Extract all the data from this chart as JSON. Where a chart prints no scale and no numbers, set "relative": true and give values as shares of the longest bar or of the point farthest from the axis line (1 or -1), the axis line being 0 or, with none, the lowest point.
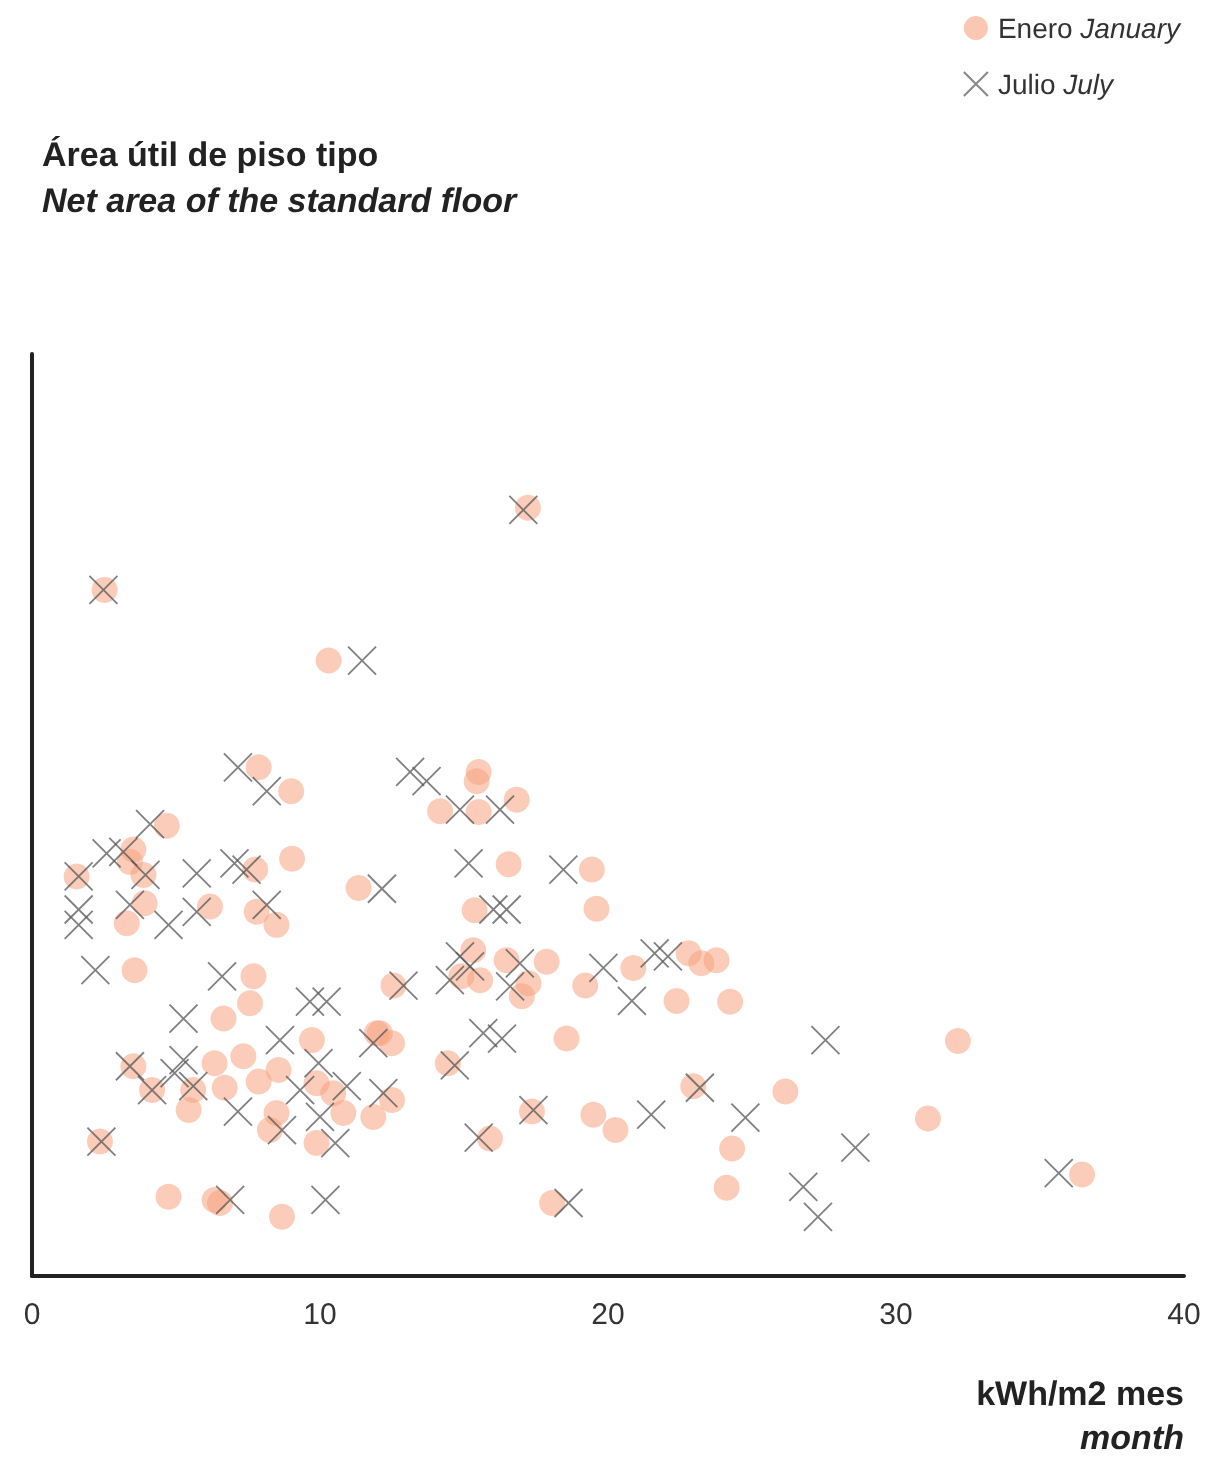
{
  "chart_data": {
    "type": "scatter",
    "title": "Área útil de piso tipo",
    "subtitle": "Net area of the standard floor",
    "xlabel": "kWh/m2 mes\nmonth",
    "relative": true,
    "xlim": [
      0,
      40
    ],
    "xticks": [
      0,
      10,
      20,
      30,
      40
    ],
    "grid": false,
    "legend": "top right",
    "series": [
      {
        "name": "Enero January",
        "color": "#f5a27f",
        "marker": "circle",
        "x": [
          2.52,
          10.3,
          7.87,
          9.0,
          4.68,
          3.52,
          1.55,
          3.4,
          7.75,
          9.03,
          3.87,
          11.34,
          3.91,
          6.18,
          3.29,
          7.8,
          8.49,
          3.56,
          7.69,
          7.57,
          6.65,
          9.72,
          11.97,
          3.52,
          6.34,
          7.34,
          8.56,
          4.17,
          5.6,
          6.69,
          7.87,
          5.44,
          9.88,
          10.46,
          10.81,
          8.49,
          8.26,
          9.88,
          11.85,
          2.36,
          4.74,
          6.34,
          6.53,
          8.68,
          17.22,
          15.51,
          15.44,
          16.83,
          14.17,
          15.51,
          16.55,
          19.44,
          15.37,
          19.6,
          15.32,
          14.91,
          15.56,
          16.48,
          17.87,
          17.24,
          17.01,
          12.55,
          19.21,
          20.88,
          22.38,
          22.8,
          12.08,
          12.5,
          18.56,
          14.44,
          12.5,
          17.36,
          15.9,
          19.49,
          20.26,
          18.06,
          22.96,
          23.24,
          23.77,
          24.24,
          32.15,
          26.16,
          31.11,
          24.31,
          24.12,
          36.46
        ],
        "values": [
          0.893,
          0.801,
          0.662,
          0.631,
          0.586,
          0.555,
          0.52,
          0.539,
          0.529,
          0.543,
          0.522,
          0.505,
          0.485,
          0.481,
          0.459,
          0.474,
          0.457,
          0.398,
          0.39,
          0.355,
          0.335,
          0.307,
          0.316,
          0.273,
          0.277,
          0.286,
          0.268,
          0.242,
          0.242,
          0.245,
          0.253,
          0.216,
          0.251,
          0.238,
          0.212,
          0.212,
          0.19,
          0.173,
          0.207,
          0.175,
          0.103,
          0.099,
          0.095,
          0.077,
          1.0,
          0.656,
          0.644,
          0.62,
          0.605,
          0.604,
          0.536,
          0.529,
          0.476,
          0.478,
          0.424,
          0.39,
          0.385,
          0.411,
          0.409,
          0.381,
          0.364,
          0.378,
          0.378,
          0.401,
          0.358,
          0.42,
          0.316,
          0.303,
          0.309,
          0.277,
          0.229,
          0.214,
          0.179,
          0.21,
          0.19,
          0.095,
          0.247,
          0.407,
          0.411,
          0.357,
          0.306,
          0.24,
          0.205,
          0.166,
          0.115,
          0.132
        ]
      },
      {
        "name": "Julio July",
        "color": "#555555",
        "marker": "cross",
        "x": [
          2.48,
          11.46,
          7.15,
          8.15,
          4.1,
          2.59,
          3.17,
          1.62,
          3.94,
          5.72,
          7.03,
          7.45,
          1.62,
          1.62,
          3.4,
          4.74,
          5.72,
          8.15,
          2.2,
          6.6,
          12.15,
          9.65,
          10.23,
          5.26,
          8.61,
          3.4,
          5.26,
          4.95,
          9.95,
          11.85,
          4.17,
          5.6,
          9.31,
          10.93,
          7.15,
          10.0,
          12.2,
          8.68,
          10.53,
          2.41,
          6.88,
          10.19,
          17.06,
          13.13,
          13.7,
          14.86,
          16.25,
          15.16,
          18.45,
          16.02,
          16.48,
          12.9,
          14.51,
          14.86,
          15.21,
          16.6,
          16.94,
          19.84,
          20.83,
          21.62,
          22.08,
          15.67,
          16.32,
          14.68,
          17.41,
          15.51,
          21.5,
          18.63,
          27.55,
          23.19,
          24.77,
          28.59,
          26.78,
          27.29,
          35.65
        ],
        "values": [
          0.893,
          0.801,
          0.662,
          0.631,
          0.588,
          0.55,
          0.552,
          0.52,
          0.522,
          0.524,
          0.537,
          0.529,
          0.477,
          0.457,
          0.483,
          0.457,
          0.474,
          0.483,
          0.398,
          0.39,
          0.504,
          0.357,
          0.357,
          0.335,
          0.307,
          0.273,
          0.281,
          0.264,
          0.277,
          0.303,
          0.242,
          0.247,
          0.242,
          0.247,
          0.214,
          0.207,
          0.238,
          0.19,
          0.173,
          0.175,
          0.099,
          0.099,
          0.997,
          0.656,
          0.644,
          0.607,
          0.607,
          0.537,
          0.529,
          0.477,
          0.477,
          0.378,
          0.385,
          0.416,
          0.403,
          0.377,
          0.407,
          0.401,
          0.358,
          0.42,
          0.416,
          0.316,
          0.309,
          0.274,
          0.216,
          0.18,
          0.21,
          0.095,
          0.307,
          0.245,
          0.206,
          0.167,
          0.116,
          0.077,
          0.134
        ]
      }
    ]
  }
}
